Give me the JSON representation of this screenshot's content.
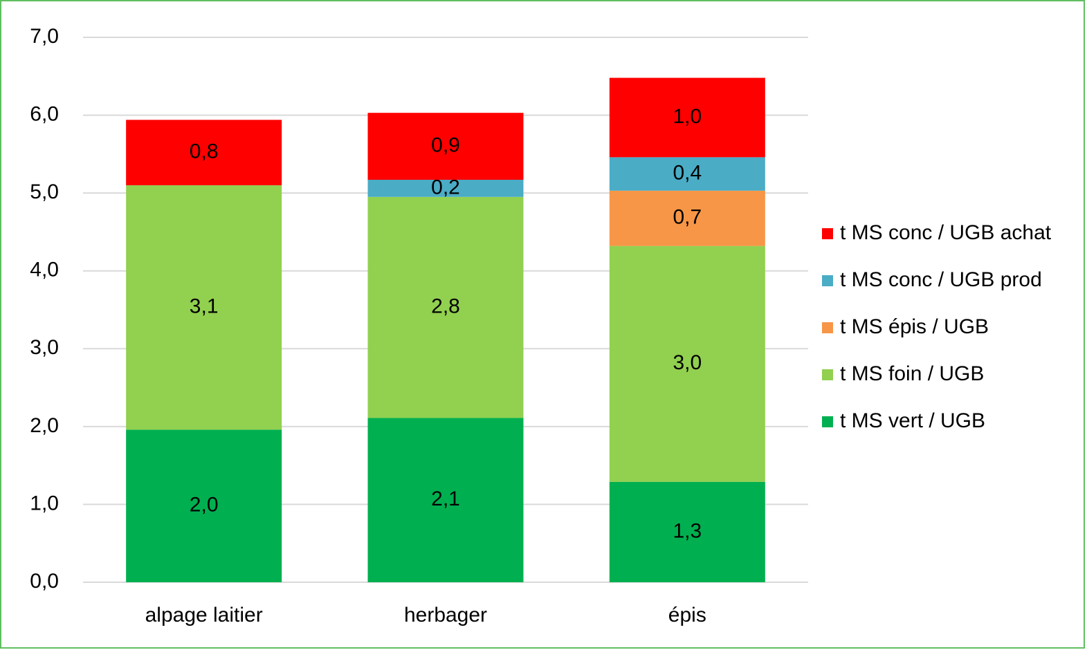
{
  "chart_data": {
    "type": "stacked_bar",
    "categories": [
      "alpage laitier",
      "herbager",
      "épis"
    ],
    "series": [
      {
        "name": "t MS vert / UGB",
        "color": "#00b050",
        "values": [
          1.96,
          2.11,
          1.29
        ],
        "value_labels": [
          "2,0",
          "2,1",
          "1,3"
        ]
      },
      {
        "name": "t MS foin / UGB",
        "color": "#92d050",
        "values": [
          3.14,
          2.84,
          3.03
        ],
        "value_labels": [
          "3,1",
          "2,8",
          "3,0"
        ]
      },
      {
        "name": "t MS épis / UGB",
        "color": "#f79646",
        "values": [
          null,
          null,
          0.71
        ],
        "value_labels": [
          null,
          null,
          "0,7"
        ]
      },
      {
        "name": "t MS conc / UGB prod",
        "color": "#4bacc6",
        "values": [
          null,
          0.22,
          0.43
        ],
        "value_labels": [
          null,
          "0,2",
          "0,4"
        ]
      },
      {
        "name": "t MS conc / UGB achat",
        "color": "#ff0000",
        "values": [
          0.84,
          0.86,
          1.02
        ],
        "value_labels": [
          "0,8",
          "0,9",
          "1,0"
        ]
      }
    ],
    "ylim": [
      0,
      7
    ],
    "yticks": [
      {
        "value": 0,
        "label": "0,0"
      },
      {
        "value": 1,
        "label": "1,0"
      },
      {
        "value": 2,
        "label": "2,0"
      },
      {
        "value": 3,
        "label": "3,0"
      },
      {
        "value": 4,
        "label": "4,0"
      },
      {
        "value": 5,
        "label": "5,0"
      },
      {
        "value": 6,
        "label": "6,0"
      },
      {
        "value": 7,
        "label": "7,0"
      }
    ],
    "grid": true,
    "legend": "right"
  }
}
